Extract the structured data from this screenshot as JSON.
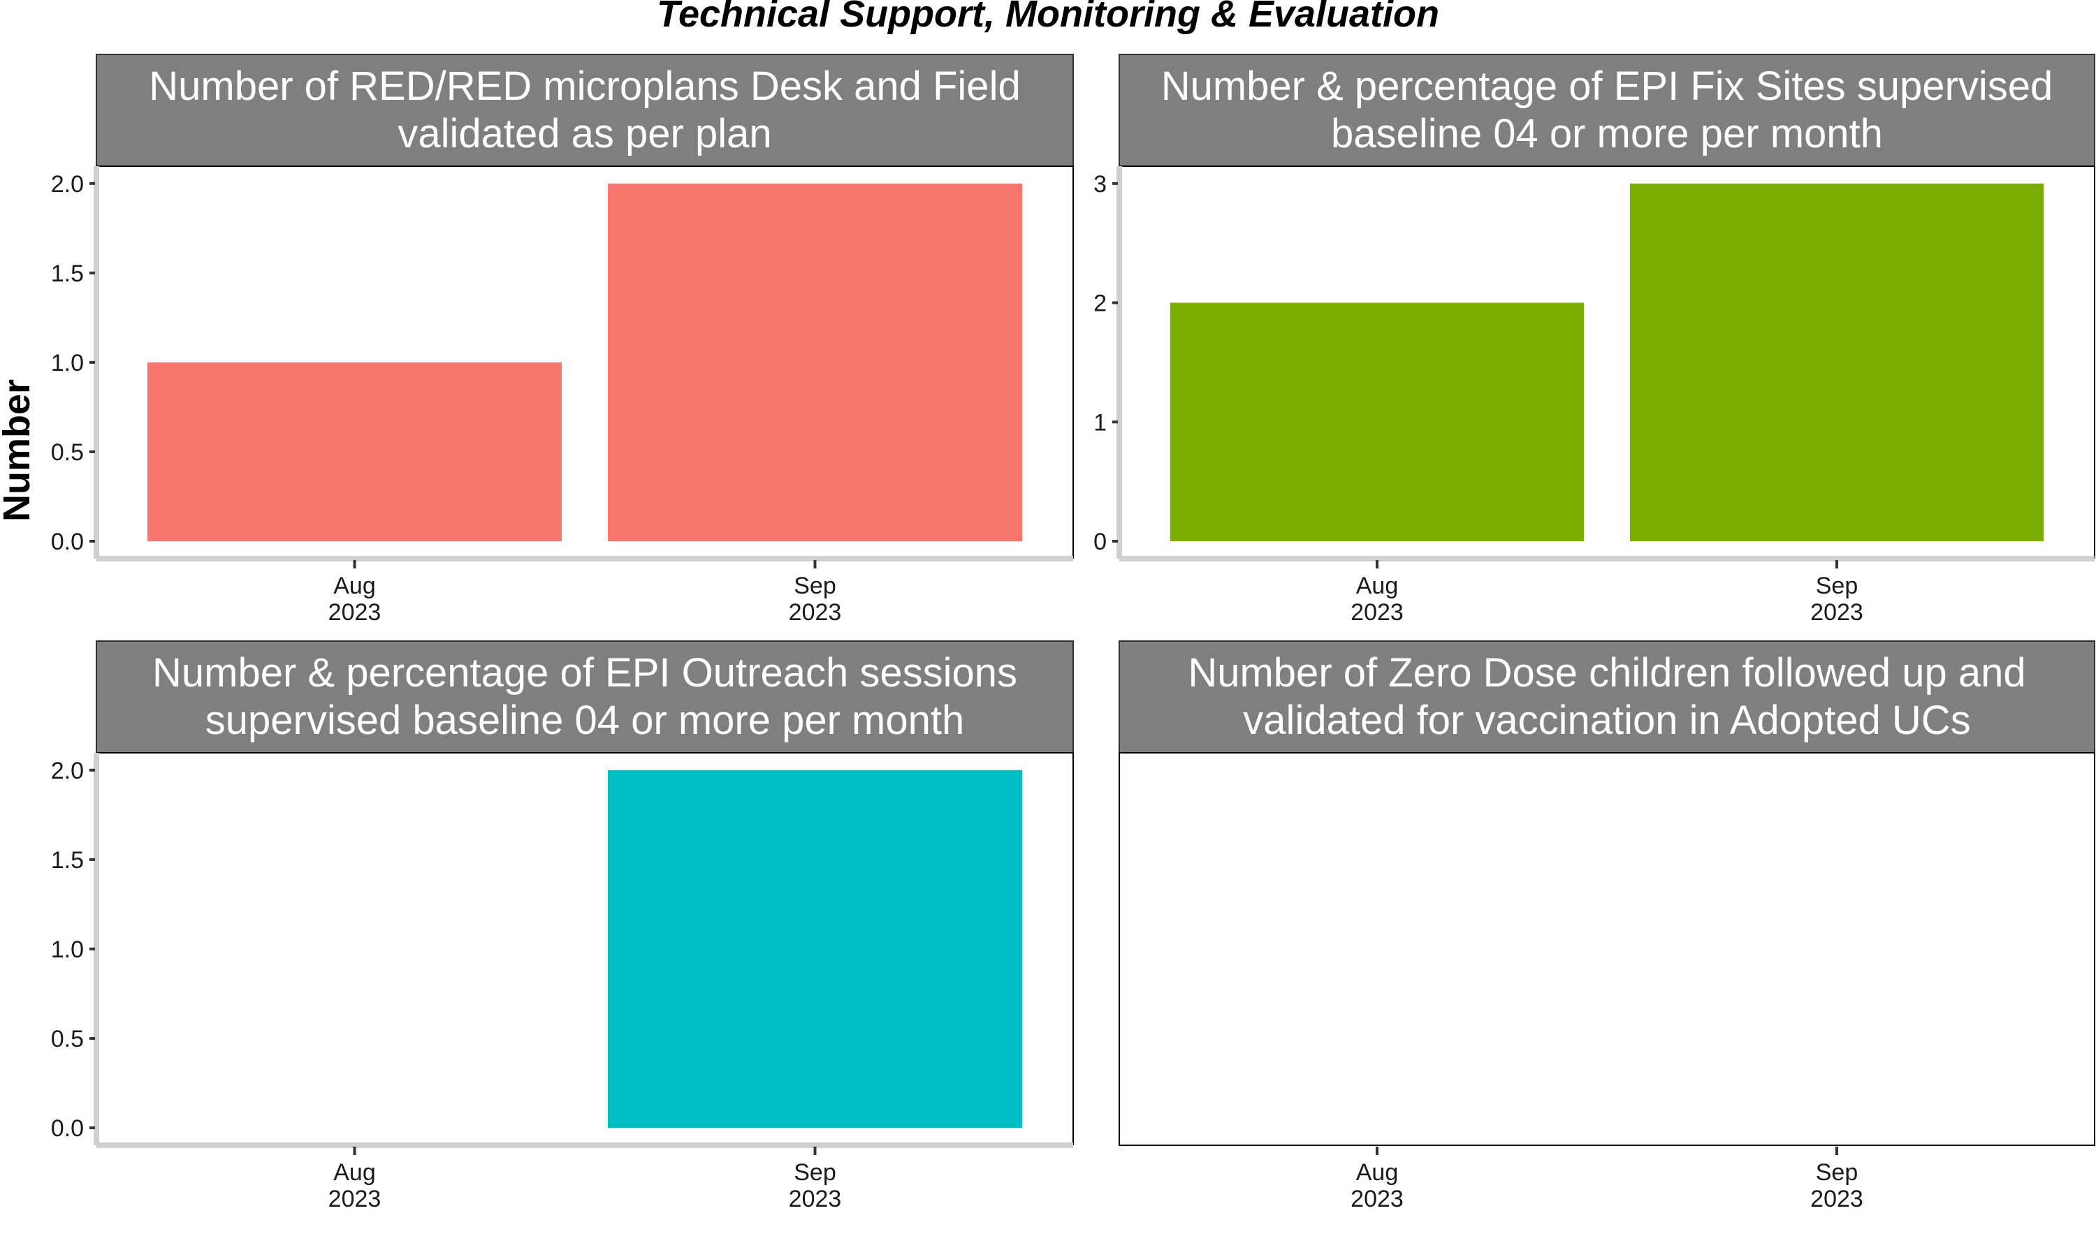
{
  "title": "Technical Support, Monitoring & Evaluation",
  "ylabel": "Number",
  "colors": {
    "strip": "#7f7f7f",
    "axis": "#d0d0d0"
  },
  "chart_data": [
    {
      "type": "bar",
      "title_lines": [
        "Number of RED/RED microplans Desk and Field",
        "validated as per plan"
      ],
      "categories": [
        [
          "Aug",
          "2023"
        ],
        [
          "Sep",
          "2023"
        ]
      ],
      "values": [
        1,
        2
      ],
      "ylim": [
        0,
        2.05
      ],
      "yticks": [
        "0.0",
        "0.5",
        "1.0",
        "1.5",
        "2.0"
      ],
      "ytick_values": [
        0,
        0.5,
        1,
        1.5,
        2
      ],
      "color": "#F8766D"
    },
    {
      "type": "bar",
      "title_lines": [
        "Number & percentage of EPI Fix Sites supervised",
        "baseline 04 or more per month"
      ],
      "categories": [
        [
          "Aug",
          "2023"
        ],
        [
          "Sep",
          "2023"
        ]
      ],
      "values": [
        2,
        3
      ],
      "ylim": [
        0,
        3.075
      ],
      "yticks": [
        "0",
        "1",
        "2",
        "3"
      ],
      "ytick_values": [
        0,
        1,
        2,
        3
      ],
      "color": "#7CAE00"
    },
    {
      "type": "bar",
      "title_lines": [
        "Number & percentage of EPI Outreach sessions",
        "supervised baseline 04 or more per month"
      ],
      "categories": [
        [
          "Aug",
          "2023"
        ],
        [
          "Sep",
          "2023"
        ]
      ],
      "values": [
        null,
        2
      ],
      "ylim": [
        0,
        2.05
      ],
      "yticks": [
        "0.0",
        "0.5",
        "1.0",
        "1.5",
        "2.0"
      ],
      "ytick_values": [
        0,
        0.5,
        1,
        1.5,
        2
      ],
      "color": "#00BFC4"
    },
    {
      "type": "bar",
      "title_lines": [
        "Number of Zero Dose children followed up and",
        "validated for vaccination in Adopted UCs"
      ],
      "categories": [
        [
          "Aug",
          "2023"
        ],
        [
          "Sep",
          "2023"
        ]
      ],
      "values": [
        null,
        null
      ],
      "ylim": null,
      "yticks": [],
      "ytick_values": [],
      "color": "#C77CFF"
    }
  ]
}
